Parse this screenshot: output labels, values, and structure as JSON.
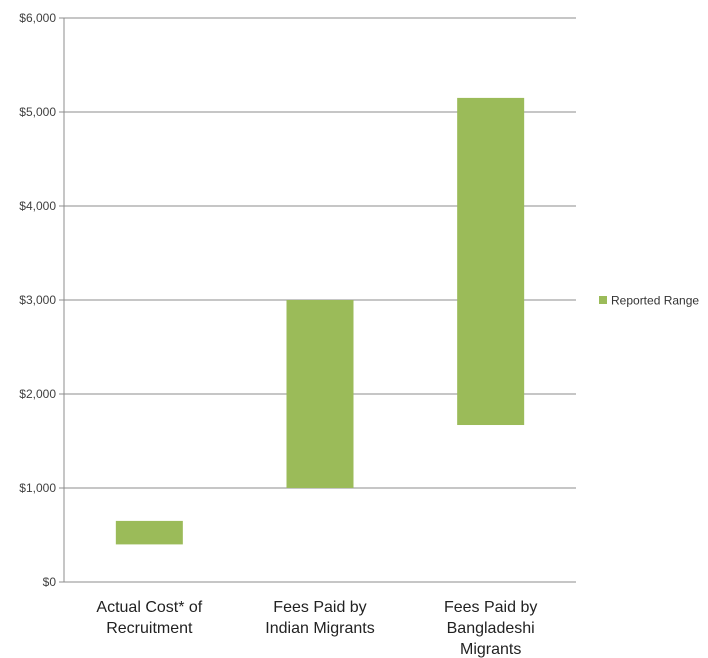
{
  "chart_data": {
    "type": "bar",
    "subtype": "floating-range",
    "categories": [
      [
        "Actual Cost* of",
        "Recruitment"
      ],
      [
        "Fees Paid by",
        "Indian Migrants"
      ],
      [
        "Fees Paid by",
        "Bangladeshi",
        "Migrants"
      ]
    ],
    "series": [
      {
        "name": "Reported Range",
        "color": "#9bbb59",
        "ranges": [
          [
            400,
            650
          ],
          [
            1000,
            3000
          ],
          [
            1670,
            5150
          ]
        ]
      }
    ],
    "ylim": [
      0,
      6000
    ],
    "yticks": [
      0,
      1000,
      2000,
      3000,
      4000,
      5000,
      6000
    ],
    "ytick_labels": [
      "$0",
      "$1,000",
      "$2,000",
      "$3,000",
      "$4,000",
      "$5,000",
      "$6,000"
    ],
    "grid": true,
    "legend_position": "right"
  }
}
